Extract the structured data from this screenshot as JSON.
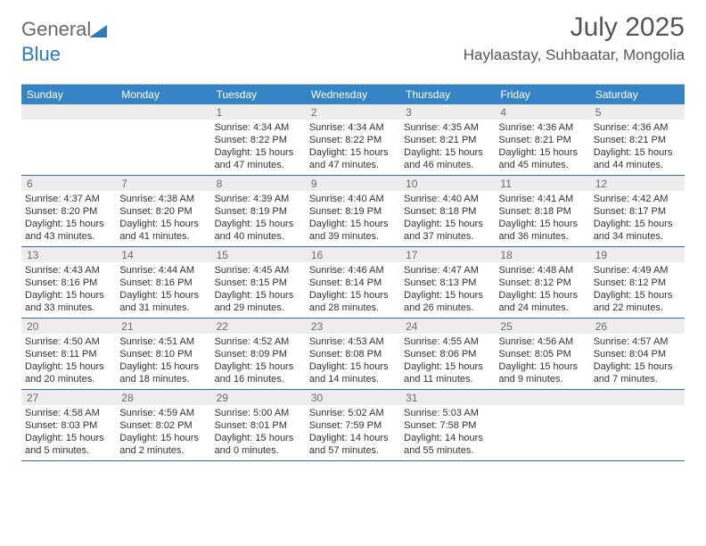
{
  "brand": {
    "word1": "General",
    "word2": "Blue"
  },
  "title": "July 2025",
  "location": "Haylaastay, Suhbaatar, Mongolia",
  "colors": {
    "header_bg": "#3585c6",
    "header_text": "#ffffff",
    "daynum_bg": "#ededed",
    "daynum_text": "#6c6c6c",
    "week_border": "#2f6aa0",
    "logo_gray": "#696969",
    "logo_blue": "#2b7bbd"
  },
  "day_names": [
    "Sunday",
    "Monday",
    "Tuesday",
    "Wednesday",
    "Thursday",
    "Friday",
    "Saturday"
  ],
  "weeks": [
    [
      {
        "day": "",
        "sunrise": "",
        "sunset": "",
        "daylight": ""
      },
      {
        "day": "",
        "sunrise": "",
        "sunset": "",
        "daylight": ""
      },
      {
        "day": "1",
        "sunrise": "Sunrise: 4:34 AM",
        "sunset": "Sunset: 8:22 PM",
        "daylight": "Daylight: 15 hours and 47 minutes."
      },
      {
        "day": "2",
        "sunrise": "Sunrise: 4:34 AM",
        "sunset": "Sunset: 8:22 PM",
        "daylight": "Daylight: 15 hours and 47 minutes."
      },
      {
        "day": "3",
        "sunrise": "Sunrise: 4:35 AM",
        "sunset": "Sunset: 8:21 PM",
        "daylight": "Daylight: 15 hours and 46 minutes."
      },
      {
        "day": "4",
        "sunrise": "Sunrise: 4:36 AM",
        "sunset": "Sunset: 8:21 PM",
        "daylight": "Daylight: 15 hours and 45 minutes."
      },
      {
        "day": "5",
        "sunrise": "Sunrise: 4:36 AM",
        "sunset": "Sunset: 8:21 PM",
        "daylight": "Daylight: 15 hours and 44 minutes."
      }
    ],
    [
      {
        "day": "6",
        "sunrise": "Sunrise: 4:37 AM",
        "sunset": "Sunset: 8:20 PM",
        "daylight": "Daylight: 15 hours and 43 minutes."
      },
      {
        "day": "7",
        "sunrise": "Sunrise: 4:38 AM",
        "sunset": "Sunset: 8:20 PM",
        "daylight": "Daylight: 15 hours and 41 minutes."
      },
      {
        "day": "8",
        "sunrise": "Sunrise: 4:39 AM",
        "sunset": "Sunset: 8:19 PM",
        "daylight": "Daylight: 15 hours and 40 minutes."
      },
      {
        "day": "9",
        "sunrise": "Sunrise: 4:40 AM",
        "sunset": "Sunset: 8:19 PM",
        "daylight": "Daylight: 15 hours and 39 minutes."
      },
      {
        "day": "10",
        "sunrise": "Sunrise: 4:40 AM",
        "sunset": "Sunset: 8:18 PM",
        "daylight": "Daylight: 15 hours and 37 minutes."
      },
      {
        "day": "11",
        "sunrise": "Sunrise: 4:41 AM",
        "sunset": "Sunset: 8:18 PM",
        "daylight": "Daylight: 15 hours and 36 minutes."
      },
      {
        "day": "12",
        "sunrise": "Sunrise: 4:42 AM",
        "sunset": "Sunset: 8:17 PM",
        "daylight": "Daylight: 15 hours and 34 minutes."
      }
    ],
    [
      {
        "day": "13",
        "sunrise": "Sunrise: 4:43 AM",
        "sunset": "Sunset: 8:16 PM",
        "daylight": "Daylight: 15 hours and 33 minutes."
      },
      {
        "day": "14",
        "sunrise": "Sunrise: 4:44 AM",
        "sunset": "Sunset: 8:16 PM",
        "daylight": "Daylight: 15 hours and 31 minutes."
      },
      {
        "day": "15",
        "sunrise": "Sunrise: 4:45 AM",
        "sunset": "Sunset: 8:15 PM",
        "daylight": "Daylight: 15 hours and 29 minutes."
      },
      {
        "day": "16",
        "sunrise": "Sunrise: 4:46 AM",
        "sunset": "Sunset: 8:14 PM",
        "daylight": "Daylight: 15 hours and 28 minutes."
      },
      {
        "day": "17",
        "sunrise": "Sunrise: 4:47 AM",
        "sunset": "Sunset: 8:13 PM",
        "daylight": "Daylight: 15 hours and 26 minutes."
      },
      {
        "day": "18",
        "sunrise": "Sunrise: 4:48 AM",
        "sunset": "Sunset: 8:12 PM",
        "daylight": "Daylight: 15 hours and 24 minutes."
      },
      {
        "day": "19",
        "sunrise": "Sunrise: 4:49 AM",
        "sunset": "Sunset: 8:12 PM",
        "daylight": "Daylight: 15 hours and 22 minutes."
      }
    ],
    [
      {
        "day": "20",
        "sunrise": "Sunrise: 4:50 AM",
        "sunset": "Sunset: 8:11 PM",
        "daylight": "Daylight: 15 hours and 20 minutes."
      },
      {
        "day": "21",
        "sunrise": "Sunrise: 4:51 AM",
        "sunset": "Sunset: 8:10 PM",
        "daylight": "Daylight: 15 hours and 18 minutes."
      },
      {
        "day": "22",
        "sunrise": "Sunrise: 4:52 AM",
        "sunset": "Sunset: 8:09 PM",
        "daylight": "Daylight: 15 hours and 16 minutes."
      },
      {
        "day": "23",
        "sunrise": "Sunrise: 4:53 AM",
        "sunset": "Sunset: 8:08 PM",
        "daylight": "Daylight: 15 hours and 14 minutes."
      },
      {
        "day": "24",
        "sunrise": "Sunrise: 4:55 AM",
        "sunset": "Sunset: 8:06 PM",
        "daylight": "Daylight: 15 hours and 11 minutes."
      },
      {
        "day": "25",
        "sunrise": "Sunrise: 4:56 AM",
        "sunset": "Sunset: 8:05 PM",
        "daylight": "Daylight: 15 hours and 9 minutes."
      },
      {
        "day": "26",
        "sunrise": "Sunrise: 4:57 AM",
        "sunset": "Sunset: 8:04 PM",
        "daylight": "Daylight: 15 hours and 7 minutes."
      }
    ],
    [
      {
        "day": "27",
        "sunrise": "Sunrise: 4:58 AM",
        "sunset": "Sunset: 8:03 PM",
        "daylight": "Daylight: 15 hours and 5 minutes."
      },
      {
        "day": "28",
        "sunrise": "Sunrise: 4:59 AM",
        "sunset": "Sunset: 8:02 PM",
        "daylight": "Daylight: 15 hours and 2 minutes."
      },
      {
        "day": "29",
        "sunrise": "Sunrise: 5:00 AM",
        "sunset": "Sunset: 8:01 PM",
        "daylight": "Daylight: 15 hours and 0 minutes."
      },
      {
        "day": "30",
        "sunrise": "Sunrise: 5:02 AM",
        "sunset": "Sunset: 7:59 PM",
        "daylight": "Daylight: 14 hours and 57 minutes."
      },
      {
        "day": "31",
        "sunrise": "Sunrise: 5:03 AM",
        "sunset": "Sunset: 7:58 PM",
        "daylight": "Daylight: 14 hours and 55 minutes."
      },
      {
        "day": "",
        "sunrise": "",
        "sunset": "",
        "daylight": ""
      },
      {
        "day": "",
        "sunrise": "",
        "sunset": "",
        "daylight": ""
      }
    ]
  ]
}
